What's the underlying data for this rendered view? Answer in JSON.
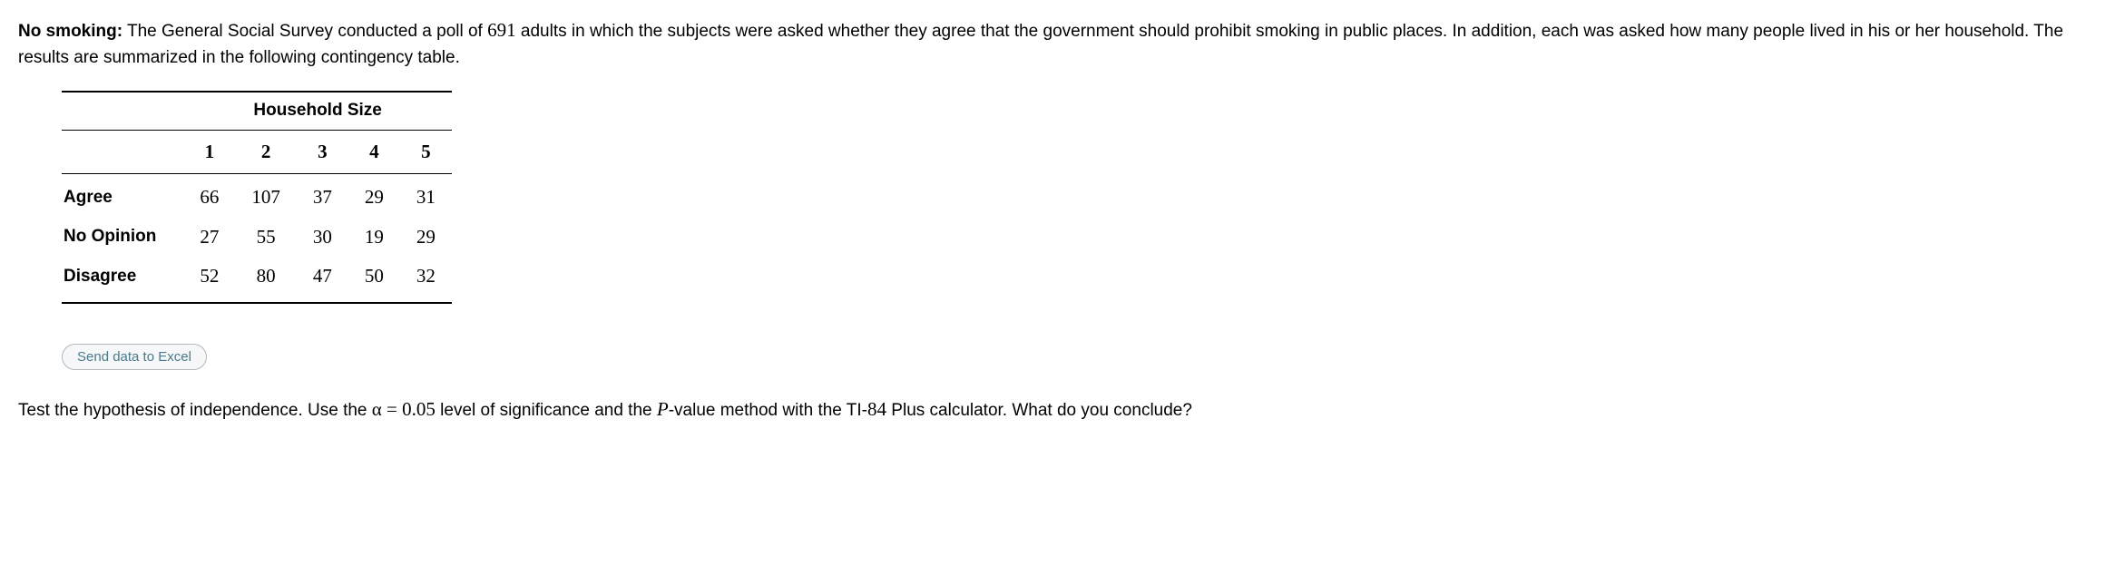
{
  "intro": {
    "title": "No smoking:",
    "text_before_num": " The General Social Survey conducted a poll of ",
    "poll_number": "691",
    "text_after_num": " adults in which the subjects were asked whether they agree that the government should prohibit smoking in public places. In addition, each was asked how many people lived in his or her household. The results are summarized in the following contingency table."
  },
  "table": {
    "super_header": "Household Size",
    "columns": [
      "1",
      "2",
      "3",
      "4",
      "5"
    ],
    "rows": [
      {
        "label": "Agree",
        "values": [
          "66",
          "107",
          "37",
          "29",
          "31"
        ]
      },
      {
        "label": "No Opinion",
        "values": [
          "27",
          "55",
          "30",
          "19",
          "29"
        ]
      },
      {
        "label": "Disagree",
        "values": [
          "52",
          "80",
          "47",
          "50",
          "32"
        ]
      }
    ]
  },
  "button": {
    "label": "Send data to Excel"
  },
  "conclusion": {
    "text_before_alpha": "Test the hypothesis of independence. Use the ",
    "alpha_expr": "α = 0.05",
    "text_after_alpha": " level of significance and the ",
    "p_letter": "P",
    "text_after_p": "-value method with the TI-",
    "ti_number": "84",
    "text_end": " Plus calculator. What do you conclude?"
  },
  "styling": {
    "body_bg": "#ffffff",
    "text_color": "#000000",
    "button_bg": "#f5f7f9",
    "button_border": "#b0b8bf",
    "button_text_color": "#4a7a8c",
    "base_fontsize": 19,
    "math_fontsize": 21,
    "button_fontsize": 15,
    "table_border_color": "#000000"
  }
}
